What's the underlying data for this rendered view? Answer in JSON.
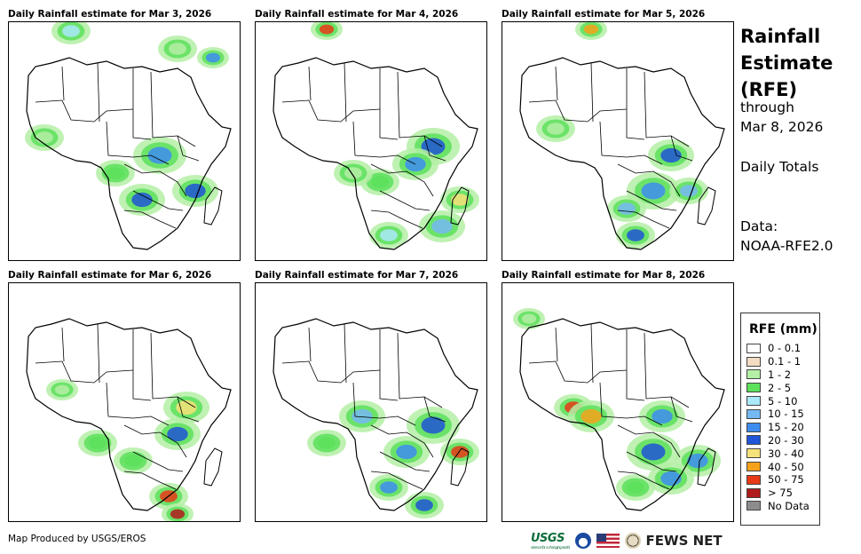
{
  "panels": [
    {
      "title": "Daily Rainfall estimate for Mar 3, 2026"
    },
    {
      "title": "Daily Rainfall estimate for Mar 4, 2026"
    },
    {
      "title": "Daily Rainfall estimate for Mar 5, 2026"
    },
    {
      "title": "Daily Rainfall estimate for Mar 6, 2026"
    },
    {
      "title": "Daily Rainfall estimate for Mar 7, 2026"
    },
    {
      "title": "Daily Rainfall estimate for Mar 8, 2026"
    }
  ],
  "sidebar": {
    "title_line1": "Rainfall",
    "title_line2": "Estimate",
    "title_line3": "(RFE)",
    "through": "through",
    "date": "Mar 8, 2026",
    "totals": "Daily Totals",
    "data_label": "Data:",
    "data_source": "NOAA-RFE2.0"
  },
  "legend": {
    "title": "RFE (mm)",
    "items": [
      {
        "label": "0 - 0.1",
        "color": "#ffffff"
      },
      {
        "label": "0.1 - 1",
        "color": "#f3dcc2"
      },
      {
        "label": "1 - 2",
        "color": "#b4efa6"
      },
      {
        "label": "2 - 5",
        "color": "#5ce15c"
      },
      {
        "label": "5 - 10",
        "color": "#a9e9f9"
      },
      {
        "label": "10 - 15",
        "color": "#75b9f4"
      },
      {
        "label": "15 - 20",
        "color": "#3d8df0"
      },
      {
        "label": "20 - 30",
        "color": "#1f55d6"
      },
      {
        "label": "30 - 40",
        "color": "#f7e27a"
      },
      {
        "label": "40 - 50",
        "color": "#f5a21a"
      },
      {
        "label": "50 - 75",
        "color": "#e83a18"
      },
      {
        "label": "> 75",
        "color": "#b01b1b"
      },
      {
        "label": "No Data",
        "color": "#8c8c8c"
      }
    ]
  },
  "footer": {
    "credit": "Map Produced by USGS/EROS",
    "usgs": "USGS",
    "usgs_tagline": "science for a changing world",
    "fews": "FEWS NET"
  }
}
